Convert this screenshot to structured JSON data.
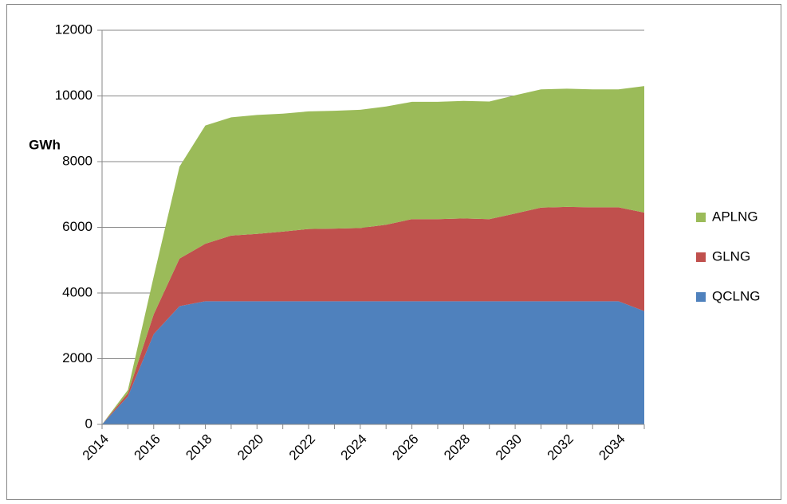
{
  "chart_data": {
    "type": "stacked-area",
    "y_label": "GWh",
    "x": [
      2014,
      2015,
      2016,
      2017,
      2018,
      2019,
      2020,
      2021,
      2022,
      2023,
      2024,
      2025,
      2026,
      2027,
      2028,
      2029,
      2030,
      2031,
      2032,
      2033,
      2034,
      2035
    ],
    "xlim": [
      2014,
      2035
    ],
    "xticks": [
      2014,
      2016,
      2018,
      2020,
      2022,
      2024,
      2026,
      2028,
      2030,
      2032,
      2034
    ],
    "ylim": [
      0,
      12000
    ],
    "yticks": [
      0,
      2000,
      4000,
      6000,
      8000,
      10000,
      12000
    ],
    "grid": true,
    "legend": "right",
    "series": [
      {
        "name": "QCLNG",
        "color": "#4f81bd",
        "values": [
          0,
          850,
          2750,
          3600,
          3750,
          3750,
          3750,
          3750,
          3750,
          3750,
          3750,
          3750,
          3750,
          3750,
          3750,
          3750,
          3750,
          3750,
          3750,
          3750,
          3750,
          3450
        ]
      },
      {
        "name": "GLNG",
        "color": "#c0504d",
        "values": [
          0,
          100,
          600,
          1450,
          1750,
          2000,
          2050,
          2120,
          2200,
          2210,
          2230,
          2330,
          2500,
          2500,
          2520,
          2500,
          2670,
          2850,
          2870,
          2860,
          2860,
          3000
        ]
      },
      {
        "name": "APLNG",
        "color": "#9bbb59",
        "values": [
          0,
          100,
          1150,
          2800,
          3600,
          3600,
          3620,
          3590,
          3580,
          3590,
          3600,
          3600,
          3570,
          3570,
          3580,
          3580,
          3600,
          3600,
          3600,
          3590,
          3590,
          3850
        ]
      }
    ]
  }
}
